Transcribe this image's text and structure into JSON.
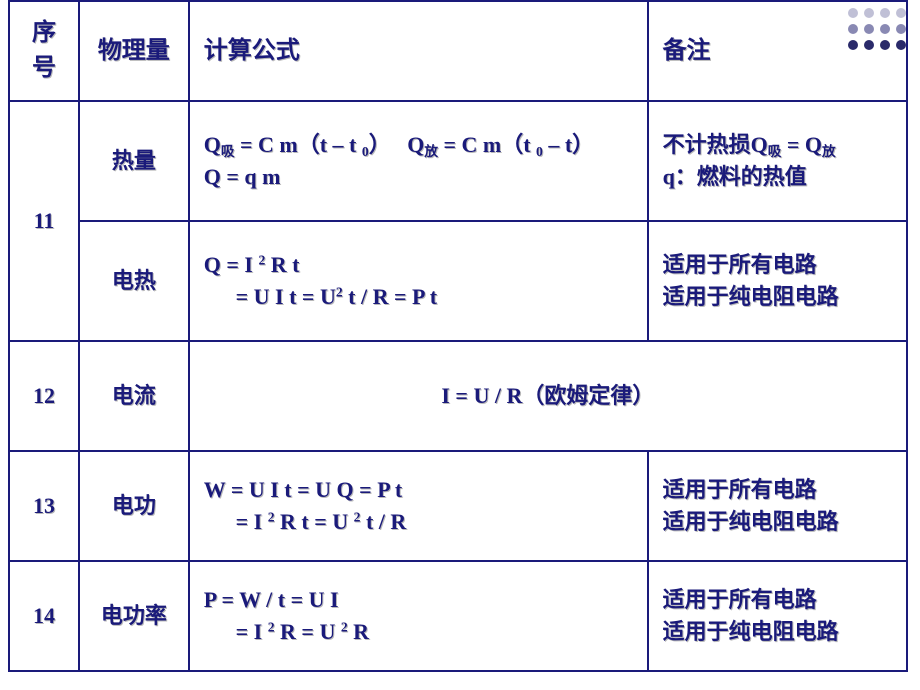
{
  "colors": {
    "border": "#1a1a7a",
    "text": "#1a1a7a",
    "text_shadow": "#b8b8b8",
    "background": "#ffffff",
    "dots": "#4a4a8a"
  },
  "header": {
    "seq": "序号",
    "qty": "物理量",
    "formula": "计算公式",
    "note": "备注"
  },
  "rows": {
    "r11": {
      "seq": "11",
      "a": {
        "qty": "热量",
        "formula_l1_a": "Q",
        "formula_l1_a_sub": "吸",
        "formula_l1_b": " = C m（t – t ",
        "formula_l1_b_sub": "0",
        "formula_l1_c": "）",
        "formula_l1_gap": "　  ",
        "formula_l1_d": "Q",
        "formula_l1_d_sub": "放",
        "formula_l1_e": " = C m（t ",
        "formula_l1_e_sub": "0",
        "formula_l1_f": " – t）",
        "formula_l2": "Q = q m",
        "note_l1_a": "不计热损Q",
        "note_l1_a_sub": "吸",
        "note_l1_b": " = Q",
        "note_l1_b_sub": "放",
        "note_l2": "q：燃料的热值"
      },
      "b": {
        "qty": "电热",
        "formula_l1_a": "Q = I ",
        "formula_l1_a_sup": "2",
        "formula_l1_b": " R t",
        "formula_l2_a": " = U I t = U",
        "formula_l2_a_sup": "2",
        "formula_l2_b": " t / R = P t",
        "note_l1": "适用于所有电路",
        "note_l2": "适用于纯电阻电路"
      }
    },
    "r12": {
      "seq": "12",
      "qty": "电流",
      "formula": "I = U / R（欧姆定律）"
    },
    "r13": {
      "seq": "13",
      "qty": "电功",
      "formula_l1": "W = U I t = U Q = P t",
      "formula_l2_a": " = I ",
      "formula_l2_a_sup": "2",
      "formula_l2_b": " R t = U ",
      "formula_l2_b_sup": "2",
      "formula_l2_c": " t / R",
      "note_l1": "适用于所有电路",
      "note_l2": "适用于纯电阻电路"
    },
    "r14": {
      "seq": "14",
      "qty": "电功率",
      "formula_l1": "P = W / t = U I",
      "formula_l2_a": " = I ",
      "formula_l2_a_sup": "2",
      "formula_l2_b": " R = U ",
      "formula_l2_b_sup": "2",
      "formula_l2_c": " R",
      "note_l1": "适用于所有电路",
      "note_l2": "适用于纯电阻电路"
    }
  }
}
